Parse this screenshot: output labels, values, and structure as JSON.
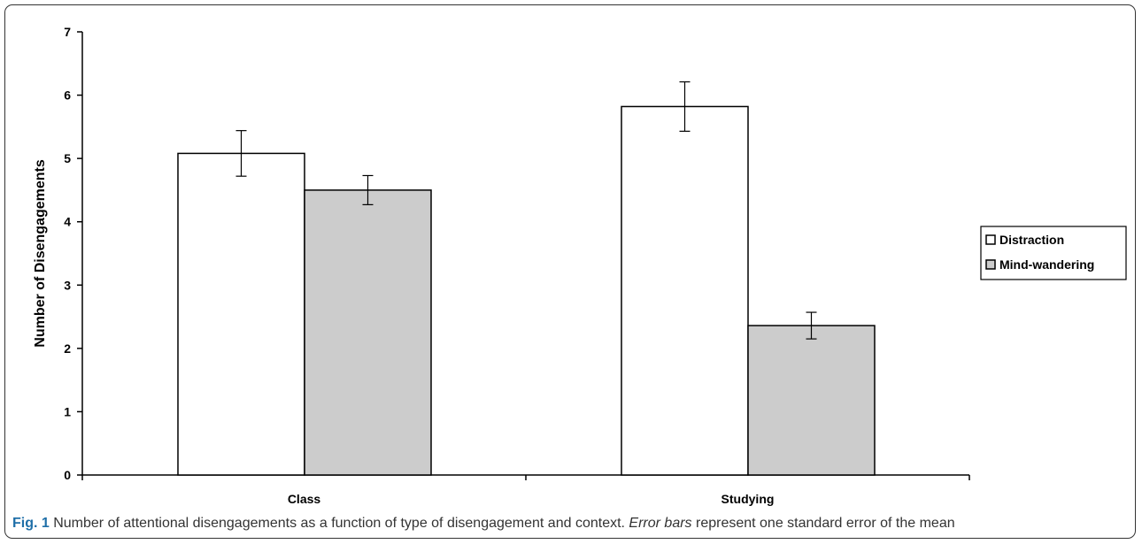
{
  "chart_data": {
    "type": "bar",
    "categories": [
      "Class",
      "Studying"
    ],
    "series": [
      {
        "name": "Distraction",
        "values": [
          5.08,
          5.82
        ],
        "errors": [
          0.36,
          0.39
        ],
        "color": "#ffffff"
      },
      {
        "name": "Mind-wandering",
        "values": [
          4.5,
          2.36
        ],
        "errors": [
          0.23,
          0.21
        ],
        "color": "#cccccc"
      }
    ],
    "ylabel": "Number of Disengagements",
    "xlabel": "",
    "ylim": [
      0,
      7
    ],
    "yticks": [
      "0",
      "1",
      "2",
      "3",
      "4",
      "5",
      "6",
      "7"
    ],
    "grid": false,
    "legend_position": "right"
  },
  "caption": {
    "fig_label": "Fig. 1",
    "text_part1": " Number of attentional disengagements as a function of type of disengagement and context. ",
    "italic": "Error bars",
    "text_part2": " represent one standard error of the mean"
  }
}
